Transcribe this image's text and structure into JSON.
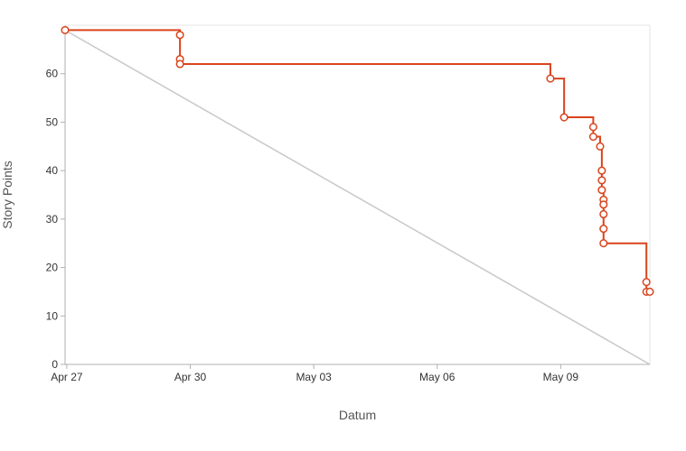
{
  "chart_data": {
    "type": "line",
    "xlabel": "Datum",
    "ylabel": "Story Points",
    "ylim": [
      0,
      70
    ],
    "xlim": [
      "2015-04-26T23:00",
      "2015-05-11T04:00"
    ],
    "y_ticks": [
      0,
      10,
      20,
      30,
      40,
      50,
      60
    ],
    "x_ticks": [
      {
        "date": "2015-04-27",
        "label": "Apr 27"
      },
      {
        "date": "2015-04-30",
        "label": "Apr 30"
      },
      {
        "date": "2015-05-03",
        "label": "May 03"
      },
      {
        "date": "2015-05-06",
        "label": "May 06"
      },
      {
        "date": "2015-05-09",
        "label": "May 09"
      }
    ],
    "grid": false,
    "series": [
      {
        "role": "burndown",
        "color": "#d9441d",
        "step": true,
        "markers": true,
        "points": [
          {
            "x": "2015-04-26T23:00",
            "y": 69
          },
          {
            "x": "2015-04-29T18:00",
            "y": 68
          },
          {
            "x": "2015-04-29T18:00",
            "y": 63
          },
          {
            "x": "2015-04-29T18:00",
            "y": 62
          },
          {
            "x": "2015-05-08T18:00",
            "y": 59
          },
          {
            "x": "2015-05-09T02:00",
            "y": 51
          },
          {
            "x": "2015-05-09T19:00",
            "y": 49
          },
          {
            "x": "2015-05-09T19:00",
            "y": 47
          },
          {
            "x": "2015-05-09T23:00",
            "y": 45
          },
          {
            "x": "2015-05-10T00:00",
            "y": 40
          },
          {
            "x": "2015-05-10T00:00",
            "y": 38
          },
          {
            "x": "2015-05-10T00:00",
            "y": 36
          },
          {
            "x": "2015-05-10T01:00",
            "y": 34
          },
          {
            "x": "2015-05-10T01:00",
            "y": 33
          },
          {
            "x": "2015-05-10T01:00",
            "y": 31
          },
          {
            "x": "2015-05-10T01:00",
            "y": 28
          },
          {
            "x": "2015-05-10T01:00",
            "y": 25
          },
          {
            "x": "2015-05-11T02:00",
            "y": 17
          },
          {
            "x": "2015-05-11T02:00",
            "y": 15
          },
          {
            "x": "2015-05-11T04:00",
            "y": 15
          }
        ]
      },
      {
        "role": "ideal",
        "color": "#c8c8c8",
        "step": false,
        "markers": false,
        "points": [
          {
            "x": "2015-04-26T23:00",
            "y": 69
          },
          {
            "x": "2015-05-11T04:00",
            "y": 0
          }
        ]
      }
    ]
  }
}
